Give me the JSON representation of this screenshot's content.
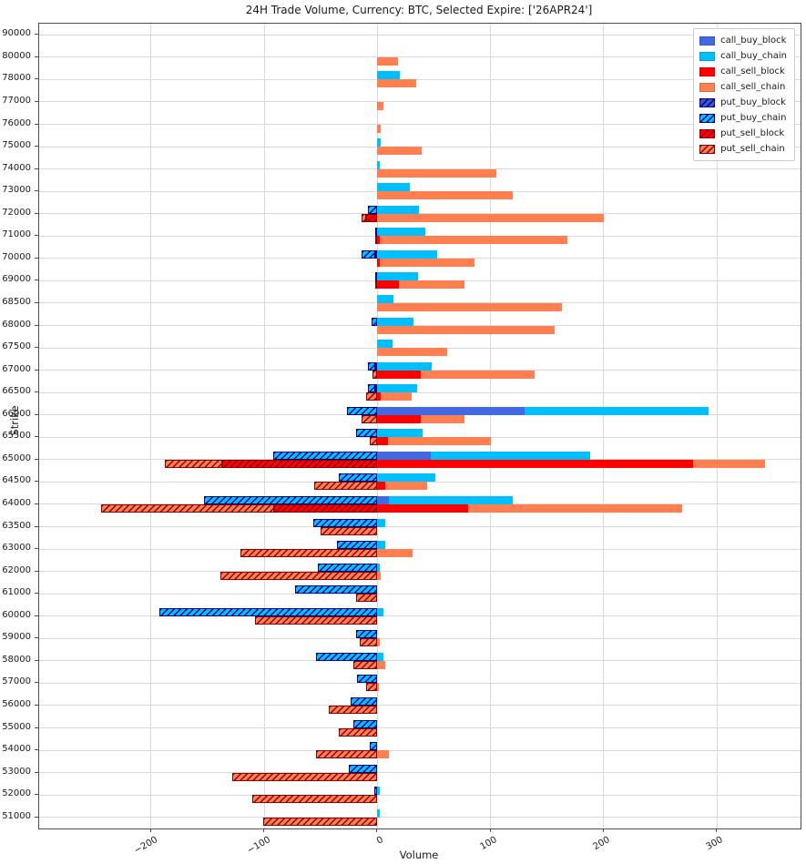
{
  "chart_data": {
    "type": "bar",
    "orientation": "horizontal",
    "title": "24H Trade Volume, Currency: BTC, Selected Expire: ['26APR24']",
    "xlabel": "Volume",
    "ylabel": "Strike",
    "grid": true,
    "legend_position": "upper right",
    "xlim": [
      -299,
      374
    ],
    "x_ticks": [
      -200,
      -100,
      0,
      100,
      200,
      300
    ],
    "series_order": [
      "call_buy_block",
      "call_buy_chain",
      "call_sell_block",
      "call_sell_chain",
      "put_buy_block",
      "put_buy_chain",
      "put_sell_block",
      "put_sell_chain"
    ],
    "series_styles": {
      "call_buy_block": {
        "color": "#4169E1",
        "hatch": false,
        "hatch_color": null
      },
      "call_buy_chain": {
        "color": "#00BFFF",
        "hatch": false,
        "hatch_color": null
      },
      "call_sell_block": {
        "color": "#FF0000",
        "hatch": false,
        "hatch_color": null
      },
      "call_sell_chain": {
        "color": "#FF7F50",
        "hatch": false,
        "hatch_color": null
      },
      "put_buy_block": {
        "color": "#3A57D0",
        "hatch": true,
        "hatch_color": "#000080"
      },
      "put_buy_chain": {
        "color": "#00BFFF",
        "hatch": true,
        "hatch_color": "#000080"
      },
      "put_sell_block": {
        "color": "#FF0000",
        "hatch": true,
        "hatch_color": "#8B0000"
      },
      "put_sell_chain": {
        "color": "#FF7F50",
        "hatch": true,
        "hatch_color": "#8B0000"
      }
    },
    "columns": [
      "call_buy_block",
      "call_buy_chain",
      "call_sell_block",
      "call_sell_chain",
      "put_buy_block",
      "put_buy_chain",
      "put_sell_block",
      "put_sell_chain"
    ],
    "categories": [
      "90000",
      "80000",
      "78000",
      "77000",
      "76000",
      "75000",
      "74000",
      "73000",
      "72000",
      "71000",
      "70000",
      "69000",
      "68500",
      "68000",
      "67500",
      "67000",
      "66500",
      "66000",
      "65500",
      "65000",
      "64500",
      "64000",
      "63500",
      "63000",
      "62000",
      "61000",
      "60000",
      "59000",
      "58000",
      "57000",
      "56000",
      "55000",
      "54000",
      "53000",
      "52000",
      "51000"
    ],
    "values": [
      [
        0,
        0,
        0,
        0,
        0,
        0,
        0,
        0
      ],
      [
        0,
        0,
        0,
        18,
        0,
        0,
        0,
        0
      ],
      [
        0,
        20,
        0,
        34,
        0,
        0,
        0,
        0
      ],
      [
        0,
        0,
        0,
        5,
        0,
        0,
        0,
        0
      ],
      [
        0,
        0,
        0,
        3,
        0,
        0,
        0,
        0
      ],
      [
        0,
        3,
        0,
        39,
        0,
        0,
        0,
        0
      ],
      [
        0,
        2,
        0,
        105,
        0,
        0,
        0,
        0
      ],
      [
        0,
        29,
        0,
        120,
        0,
        0,
        0,
        0
      ],
      [
        0,
        37,
        0,
        200,
        0,
        8,
        10,
        4
      ],
      [
        0,
        42,
        2,
        166,
        2,
        0,
        0,
        2
      ],
      [
        0,
        53,
        2,
        84,
        2,
        12,
        0,
        0
      ],
      [
        0,
        36,
        19,
        58,
        2,
        0,
        0,
        2
      ],
      [
        0,
        14,
        0,
        163,
        0,
        0,
        0,
        0
      ],
      [
        0,
        32,
        0,
        157,
        0,
        5,
        0,
        0
      ],
      [
        0,
        13,
        0,
        62,
        0,
        0,
        0,
        0
      ],
      [
        0,
        48,
        38,
        101,
        2,
        6,
        0,
        4
      ],
      [
        0,
        35,
        3,
        27,
        2,
        6,
        0,
        10
      ],
      [
        130,
        163,
        38,
        39,
        0,
        27,
        0,
        14
      ],
      [
        0,
        40,
        9,
        91,
        0,
        19,
        0,
        7
      ],
      [
        47,
        141,
        279,
        64,
        0,
        92,
        137,
        51
      ],
      [
        0,
        51,
        7,
        37,
        0,
        34,
        0,
        56
      ],
      [
        10,
        110,
        80,
        189,
        0,
        153,
        91,
        153
      ],
      [
        0,
        7,
        0,
        0,
        0,
        57,
        0,
        50
      ],
      [
        0,
        7,
        0,
        31,
        0,
        36,
        0,
        121
      ],
      [
        0,
        2,
        0,
        3,
        0,
        53,
        0,
        139
      ],
      [
        0,
        0,
        0,
        0,
        0,
        73,
        0,
        19
      ],
      [
        0,
        5,
        0,
        0,
        0,
        193,
        0,
        108
      ],
      [
        0,
        0,
        0,
        2,
        0,
        19,
        0,
        16
      ],
      [
        0,
        5,
        0,
        7,
        0,
        54,
        0,
        21
      ],
      [
        0,
        0,
        0,
        1,
        0,
        18,
        0,
        10
      ],
      [
        0,
        0,
        0,
        0,
        0,
        24,
        0,
        43
      ],
      [
        0,
        0,
        0,
        0,
        0,
        21,
        0,
        34
      ],
      [
        0,
        0,
        0,
        10,
        0,
        7,
        0,
        54
      ],
      [
        0,
        0,
        0,
        0,
        0,
        25,
        0,
        128
      ],
      [
        0,
        2,
        0,
        0,
        0,
        3,
        0,
        111
      ],
      [
        0,
        2,
        0,
        0,
        0,
        0,
        0,
        101
      ]
    ]
  }
}
